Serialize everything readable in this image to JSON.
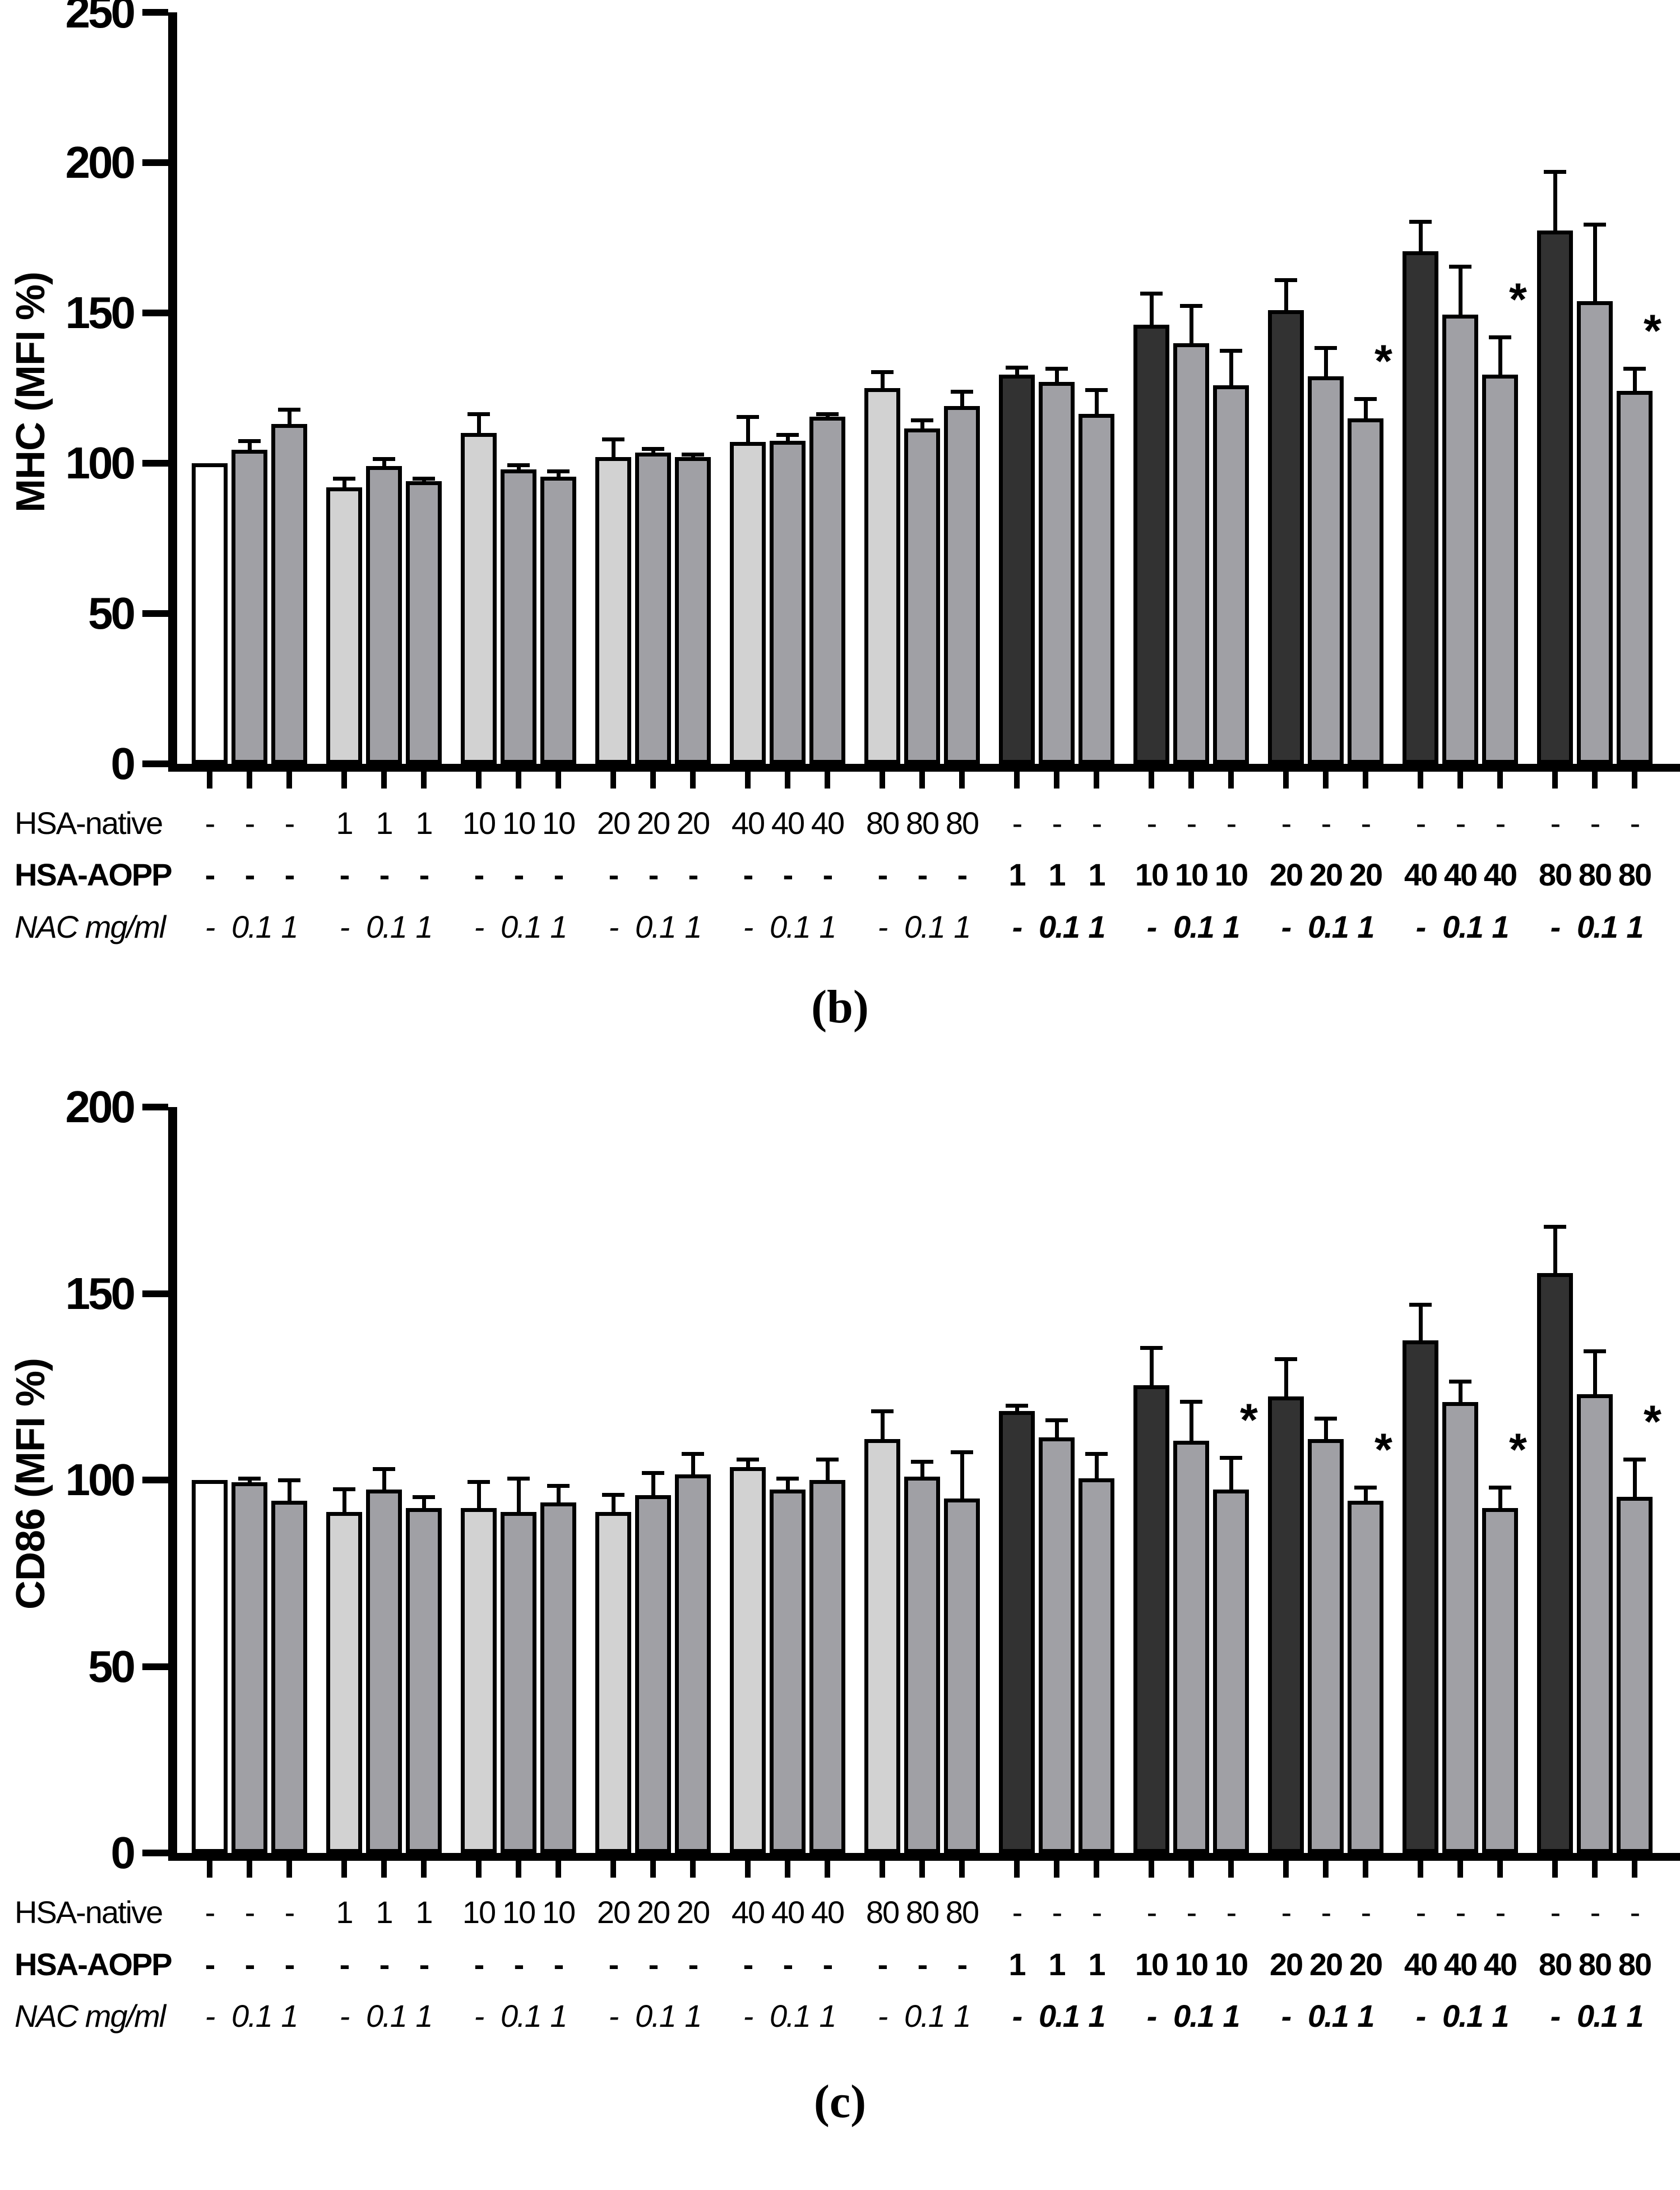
{
  "colors": {
    "white": "#ffffff",
    "light": "#d2d2d2",
    "gray": "#a0a0a5",
    "dark": "#323232",
    "axis": "#000000"
  },
  "chart_data": [
    {
      "type": "bar",
      "title": "",
      "ylabel": "MHC (MFI %)",
      "xlabel": "",
      "ylim": [
        0,
        250
      ],
      "yticks": [
        0,
        50,
        100,
        150,
        200,
        250
      ],
      "grid": false,
      "legend": "none",
      "caption": "(b)",
      "x_rows": {
        "row1": "HSA-native",
        "row2": "HSA-AOPP",
        "row3": "NAC mg/ml"
      },
      "groups": [
        {
          "hsa_native": "-",
          "hsa_aopp": "-",
          "nac": [
            "-",
            "0.1",
            "1"
          ],
          "bold": false,
          "bars": [
            {
              "value": 100,
              "err": 0,
              "fill": "white"
            },
            {
              "value": 104.5,
              "err": 3.5,
              "fill": "gray"
            },
            {
              "value": 113,
              "err": 5.5,
              "fill": "gray"
            }
          ],
          "sig": [
            "",
            "",
            ""
          ]
        },
        {
          "hsa_native": "1",
          "hsa_aopp": "-",
          "nac": [
            "-",
            "0.1",
            "1"
          ],
          "bold": false,
          "bars": [
            {
              "value": 92,
              "err": 3.5,
              "fill": "light"
            },
            {
              "value": 99,
              "err": 3,
              "fill": "gray"
            },
            {
              "value": 94,
              "err": 1.5,
              "fill": "gray"
            }
          ],
          "sig": [
            "",
            "",
            ""
          ]
        },
        {
          "hsa_native": "10",
          "hsa_aopp": "-",
          "nac": [
            "-",
            "0.1",
            "1"
          ],
          "bold": false,
          "bars": [
            {
              "value": 110,
              "err": 7,
              "fill": "light"
            },
            {
              "value": 98,
              "err": 2,
              "fill": "gray"
            },
            {
              "value": 95.5,
              "err": 2.5,
              "fill": "gray"
            }
          ],
          "sig": [
            "",
            "",
            ""
          ]
        },
        {
          "hsa_native": "20",
          "hsa_aopp": "-",
          "nac": [
            "-",
            "0.1",
            "1"
          ],
          "bold": false,
          "bars": [
            {
              "value": 102,
              "err": 6.5,
              "fill": "light"
            },
            {
              "value": 103.5,
              "err": 2,
              "fill": "gray"
            },
            {
              "value": 102,
              "err": 1.5,
              "fill": "gray"
            }
          ],
          "sig": [
            "",
            "",
            ""
          ]
        },
        {
          "hsa_native": "40",
          "hsa_aopp": "-",
          "nac": [
            "-",
            "0.1",
            "1"
          ],
          "bold": false,
          "bars": [
            {
              "value": 107,
              "err": 9,
              "fill": "light"
            },
            {
              "value": 107.5,
              "err": 2.5,
              "fill": "gray"
            },
            {
              "value": 115.5,
              "err": 1.5,
              "fill": "gray"
            }
          ],
          "sig": [
            "",
            "",
            ""
          ]
        },
        {
          "hsa_native": "80",
          "hsa_aopp": "-",
          "nac": [
            "-",
            "0.1",
            "1"
          ],
          "bold": false,
          "bars": [
            {
              "value": 125,
              "err": 6,
              "fill": "light"
            },
            {
              "value": 111.5,
              "err": 3.5,
              "fill": "gray"
            },
            {
              "value": 119,
              "err": 5.5,
              "fill": "gray"
            }
          ],
          "sig": [
            "",
            "",
            ""
          ]
        },
        {
          "hsa_native": "-",
          "hsa_aopp": "1",
          "nac": [
            "-",
            "0.1",
            "1"
          ],
          "bold": true,
          "bars": [
            {
              "value": 129.5,
              "err": 3,
              "fill": "dark"
            },
            {
              "value": 127,
              "err": 5,
              "fill": "gray"
            },
            {
              "value": 116.5,
              "err": 8.5,
              "fill": "gray"
            }
          ],
          "sig": [
            "",
            "",
            ""
          ]
        },
        {
          "hsa_native": "-",
          "hsa_aopp": "10",
          "nac": [
            "-",
            "0.1",
            "1"
          ],
          "bold": true,
          "bars": [
            {
              "value": 146,
              "err": 11,
              "fill": "dark"
            },
            {
              "value": 140,
              "err": 13,
              "fill": "gray"
            },
            {
              "value": 126,
              "err": 12,
              "fill": "gray"
            }
          ],
          "sig": [
            "",
            "",
            ""
          ]
        },
        {
          "hsa_native": "-",
          "hsa_aopp": "20",
          "nac": [
            "-",
            "0.1",
            "1"
          ],
          "bold": true,
          "bars": [
            {
              "value": 151,
              "err": 10.5,
              "fill": "dark"
            },
            {
              "value": 129,
              "err": 10,
              "fill": "gray"
            },
            {
              "value": 115,
              "err": 7,
              "fill": "gray"
            }
          ],
          "sig": [
            "",
            "",
            "*"
          ]
        },
        {
          "hsa_native": "-",
          "hsa_aopp": "40",
          "nac": [
            "-",
            "0.1",
            "1"
          ],
          "bold": true,
          "bars": [
            {
              "value": 170.5,
              "err": 10.5,
              "fill": "dark"
            },
            {
              "value": 149.5,
              "err": 16.5,
              "fill": "gray"
            },
            {
              "value": 129.5,
              "err": 13,
              "fill": "gray"
            }
          ],
          "sig": [
            "",
            "",
            "*"
          ]
        },
        {
          "hsa_native": "-",
          "hsa_aopp": "80",
          "nac": [
            "-",
            "0.1",
            "1"
          ],
          "bold": true,
          "bars": [
            {
              "value": 177.5,
              "err": 20,
              "fill": "dark"
            },
            {
              "value": 154,
              "err": 26,
              "fill": "gray"
            },
            {
              "value": 124,
              "err": 8,
              "fill": "gray"
            }
          ],
          "sig": [
            "",
            "",
            "*"
          ]
        }
      ]
    },
    {
      "type": "bar",
      "title": "",
      "ylabel": "CD86 (MFI %)",
      "xlabel": "",
      "ylim": [
        0,
        200
      ],
      "yticks": [
        0,
        50,
        100,
        150,
        200
      ],
      "grid": false,
      "legend": "none",
      "caption": "(c)",
      "x_rows": {
        "row1": "HSA-native",
        "row2": "HSA-AOPP",
        "row3": "NAC mg/ml"
      },
      "groups": [
        {
          "hsa_native": "-",
          "hsa_aopp": "-",
          "nac": [
            "-",
            "0.1",
            "1"
          ],
          "bold": false,
          "bars": [
            {
              "value": 100,
              "err": 0,
              "fill": "white"
            },
            {
              "value": 99.5,
              "err": 1.5,
              "fill": "gray"
            },
            {
              "value": 94.5,
              "err": 6,
              "fill": "gray"
            }
          ],
          "sig": [
            "",
            "",
            ""
          ]
        },
        {
          "hsa_native": "1",
          "hsa_aopp": "-",
          "nac": [
            "-",
            "0.1",
            "1"
          ],
          "bold": false,
          "bars": [
            {
              "value": 91.5,
              "err": 6.5,
              "fill": "light"
            },
            {
              "value": 97.5,
              "err": 6,
              "fill": "gray"
            },
            {
              "value": 92.5,
              "err": 3.5,
              "fill": "gray"
            }
          ],
          "sig": [
            "",
            "",
            ""
          ]
        },
        {
          "hsa_native": "10",
          "hsa_aopp": "-",
          "nac": [
            "-",
            "0.1",
            "1"
          ],
          "bold": false,
          "bars": [
            {
              "value": 92.5,
              "err": 7.5,
              "fill": "light"
            },
            {
              "value": 91.5,
              "err": 9.5,
              "fill": "gray"
            },
            {
              "value": 94,
              "err": 5,
              "fill": "gray"
            }
          ],
          "sig": [
            "",
            "",
            ""
          ]
        },
        {
          "hsa_native": "20",
          "hsa_aopp": "-",
          "nac": [
            "-",
            "0.1",
            "1"
          ],
          "bold": false,
          "bars": [
            {
              "value": 91.5,
              "err": 5,
              "fill": "light"
            },
            {
              "value": 96,
              "err": 6.5,
              "fill": "gray"
            },
            {
              "value": 101.5,
              "err": 6,
              "fill": "gray"
            }
          ],
          "sig": [
            "",
            "",
            ""
          ]
        },
        {
          "hsa_native": "40",
          "hsa_aopp": "-",
          "nac": [
            "-",
            "0.1",
            "1"
          ],
          "bold": false,
          "bars": [
            {
              "value": 103.5,
              "err": 2.5,
              "fill": "light"
            },
            {
              "value": 97.5,
              "err": 3.5,
              "fill": "gray"
            },
            {
              "value": 100,
              "err": 6,
              "fill": "gray"
            }
          ],
          "sig": [
            "",
            "",
            ""
          ]
        },
        {
          "hsa_native": "80",
          "hsa_aopp": "-",
          "nac": [
            "-",
            "0.1",
            "1"
          ],
          "bold": false,
          "bars": [
            {
              "value": 111,
              "err": 8,
              "fill": "light"
            },
            {
              "value": 101,
              "err": 4.5,
              "fill": "gray"
            },
            {
              "value": 95,
              "err": 13,
              "fill": "gray"
            }
          ],
          "sig": [
            "",
            "",
            ""
          ]
        },
        {
          "hsa_native": "-",
          "hsa_aopp": "1",
          "nac": [
            "-",
            "0.1",
            "1"
          ],
          "bold": true,
          "bars": [
            {
              "value": 118.5,
              "err": 2,
              "fill": "dark"
            },
            {
              "value": 111.5,
              "err": 5,
              "fill": "gray"
            },
            {
              "value": 100.5,
              "err": 7,
              "fill": "gray"
            }
          ],
          "sig": [
            "",
            "",
            ""
          ]
        },
        {
          "hsa_native": "-",
          "hsa_aopp": "10",
          "nac": [
            "-",
            "0.1",
            "1"
          ],
          "bold": true,
          "bars": [
            {
              "value": 125.5,
              "err": 10.5,
              "fill": "dark"
            },
            {
              "value": 110.5,
              "err": 11,
              "fill": "gray"
            },
            {
              "value": 97.5,
              "err": 9,
              "fill": "gray"
            }
          ],
          "sig": [
            "",
            "",
            "*"
          ]
        },
        {
          "hsa_native": "-",
          "hsa_aopp": "20",
          "nac": [
            "-",
            "0.1",
            "1"
          ],
          "bold": true,
          "bars": [
            {
              "value": 122.5,
              "err": 10.5,
              "fill": "dark"
            },
            {
              "value": 111,
              "err": 6,
              "fill": "gray"
            },
            {
              "value": 94.5,
              "err": 4,
              "fill": "gray"
            }
          ],
          "sig": [
            "",
            "",
            "*"
          ]
        },
        {
          "hsa_native": "-",
          "hsa_aopp": "40",
          "nac": [
            "-",
            "0.1",
            "1"
          ],
          "bold": true,
          "bars": [
            {
              "value": 137.5,
              "err": 10,
              "fill": "dark"
            },
            {
              "value": 121,
              "err": 6,
              "fill": "gray"
            },
            {
              "value": 92.5,
              "err": 6,
              "fill": "gray"
            }
          ],
          "sig": [
            "",
            "",
            "*"
          ]
        },
        {
          "hsa_native": "-",
          "hsa_aopp": "80",
          "nac": [
            "-",
            "0.1",
            "1"
          ],
          "bold": true,
          "bars": [
            {
              "value": 155.5,
              "err": 13,
              "fill": "dark"
            },
            {
              "value": 123,
              "err": 12,
              "fill": "gray"
            },
            {
              "value": 95.5,
              "err": 10.5,
              "fill": "gray"
            }
          ],
          "sig": [
            "",
            "",
            "*"
          ]
        }
      ]
    }
  ]
}
